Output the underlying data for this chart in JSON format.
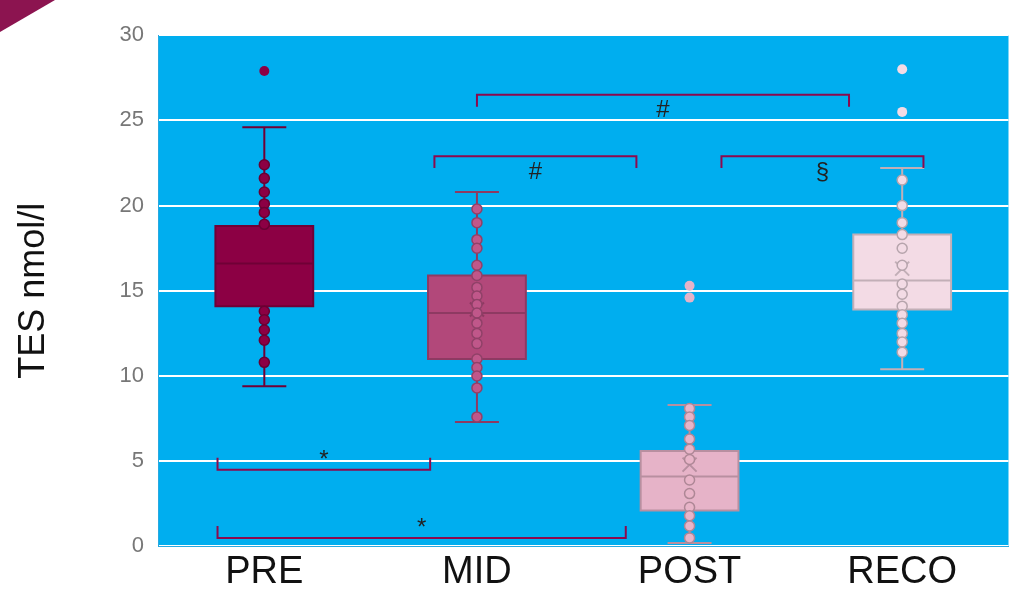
{
  "chart_data": {
    "type": "box",
    "ylabel": "TES nmol/l",
    "categories": [
      "PRE",
      "MID",
      "POST",
      "RECO"
    ],
    "ylim": [
      0,
      30
    ],
    "yticks": [
      0,
      5,
      10,
      15,
      20,
      25,
      30
    ],
    "grid": "y",
    "legend": false,
    "colors": [
      "#8c0044",
      "#b2487a",
      "#e6b3c8",
      "#f3dbe5"
    ],
    "boxes": [
      {
        "low": 9.4,
        "q1": 14.1,
        "median": 16.6,
        "q3": 18.8,
        "high": 24.6,
        "outliers": [
          27.9
        ]
      },
      {
        "low": 7.3,
        "q1": 11.0,
        "median": 13.7,
        "q3": 15.9,
        "high": 20.8,
        "mean": 13.9
      },
      {
        "low": 0.2,
        "q1": 2.1,
        "median": 4.1,
        "q3": 5.6,
        "high": 8.3,
        "mean": 4.8,
        "outliers": [
          15.3,
          14.6
        ]
      },
      {
        "low": 10.4,
        "q1": 13.9,
        "median": 15.6,
        "q3": 18.3,
        "high": 22.2,
        "mean": 16.3,
        "outliers": [
          28.0,
          25.5
        ]
      }
    ],
    "series": [
      {
        "type": "scatter",
        "marker": "circle",
        "x": [
          "PRE",
          "PRE",
          "PRE",
          "PRE",
          "PRE",
          "PRE",
          "PRE",
          "PRE",
          "PRE",
          "PRE",
          "PRE",
          "MID",
          "MID",
          "MID",
          "MID",
          "MID",
          "MID",
          "MID",
          "MID",
          "MID",
          "MID",
          "MID",
          "MID",
          "MID",
          "MID",
          "MID",
          "MID",
          "MID",
          "MID",
          "POST",
          "POST",
          "POST",
          "POST",
          "POST",
          "POST",
          "POST",
          "POST",
          "POST",
          "POST",
          "POST",
          "POST",
          "RECO",
          "RECO",
          "RECO",
          "RECO",
          "RECO",
          "RECO",
          "RECO",
          "RECO",
          "RECO",
          "RECO",
          "RECO",
          "RECO",
          "RECO",
          "RECO"
        ],
        "values": [
          22.4,
          21.6,
          20.8,
          20.1,
          19.6,
          18.9,
          13.8,
          13.3,
          12.7,
          12.1,
          10.8,
          19.8,
          19.0,
          18.0,
          17.5,
          16.5,
          15.9,
          15.2,
          14.7,
          14.2,
          13.7,
          13.1,
          12.5,
          11.9,
          11.0,
          10.5,
          10.0,
          9.3,
          7.6,
          8.1,
          7.6,
          7.1,
          6.3,
          5.7,
          5.1,
          3.9,
          3.1,
          2.3,
          1.8,
          1.2,
          0.5,
          21.5,
          20.0,
          19.0,
          18.3,
          17.5,
          16.5,
          15.4,
          14.8,
          14.1,
          13.6,
          13.1,
          12.5,
          12.0,
          11.4
        ],
        "colors": [
          "#8c0044",
          "#8c0044",
          "#8c0044",
          "#8c0044",
          "#8c0044",
          "#8c0044",
          "#8c0044",
          "#8c0044",
          "#8c0044",
          "#8c0044",
          "#8c0044",
          "#c0578a",
          "#c0578a",
          "#c0578a",
          "#c0578a",
          "#c0578a",
          "#c0578a",
          "#c0578a",
          "#c0578a",
          "#c0578a",
          "#c0578a",
          "#c0578a",
          "#c0578a",
          "#c0578a",
          "#c0578a",
          "#c0578a",
          "#c0578a",
          "#c0578a",
          "#c0578a",
          "#e8b4c8",
          "#e8b4c8",
          "#e8b4c8",
          "#e8b4c8",
          "#e8b4c8",
          "#e8b4c8",
          "#e8b4c8",
          "#e8b4c8",
          "#e8b4c8",
          "#e8b4c8",
          "#e8b4c8",
          "#e8b4c8",
          "#f3dbe5",
          "#f3dbe5",
          "#f3dbe5",
          "#f3dbe5",
          "#f3dbe5",
          "#f3dbe5",
          "#f3dbe5",
          "#f3dbe5",
          "#f3dbe5",
          "#f3dbe5",
          "#f3dbe5",
          "#f3dbe5",
          "#f3dbe5",
          "#f3dbe5"
        ]
      }
    ],
    "annotations": [
      "*",
      "*",
      "#",
      "#",
      "§"
    ]
  }
}
